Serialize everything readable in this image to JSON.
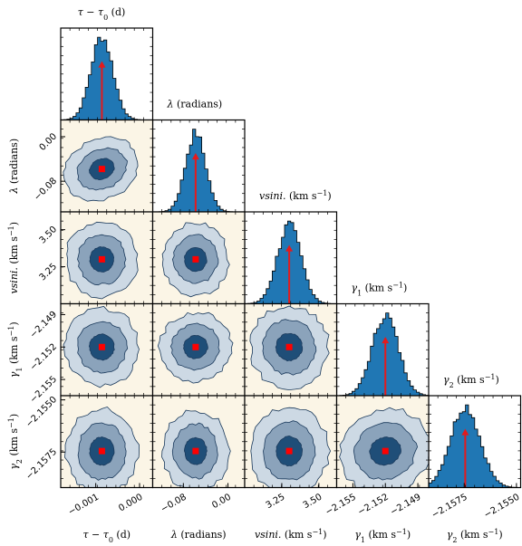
{
  "figure": {
    "type": "corner-plot",
    "params": [
      {
        "id": "tau",
        "title": "τ − τ0 (d)",
        "label_main": "τ − τ",
        "label_sub": "0",
        "label_unit": " (d)"
      },
      {
        "id": "lambda",
        "title": "λ (radians)",
        "label_main": "λ",
        "label_sub": "",
        "label_unit": " (radians)"
      },
      {
        "id": "vsini",
        "title": "vsini. (km s−1)",
        "label_main": "vsini.",
        "label_sub": "",
        "label_unit": " (km s",
        "label_sup": "−1",
        "label_close": ")"
      },
      {
        "id": "gamma1",
        "title": "γ1 (km s−1)",
        "label_main": "γ",
        "label_sub": "1",
        "label_unit": " (km s",
        "label_sup": "−1",
        "label_close": ")"
      },
      {
        "id": "gamma2",
        "title": "γ2 (km s−1)",
        "label_main": "γ",
        "label_sub": "2",
        "label_unit": " (km s",
        "label_sup": "−1",
        "label_close": ")"
      }
    ],
    "colors": {
      "histogram": "#2077b4",
      "median_arrow": "#e41a1c",
      "marker": "#ff0000",
      "panel_bg": "#fbf5e6",
      "contour_outer": "#cdd9e4",
      "contour_mid": "#8ba3bb",
      "contour_inner": "#1f4e78",
      "contour_line": "#1b3a5c"
    }
  },
  "chart_data": {
    "type": "corner",
    "dimensions": [
      "tau",
      "lambda",
      "vsini",
      "gamma1",
      "gamma2"
    ],
    "ranges": [
      [
        -0.0018,
        0.0003
      ],
      [
        -0.135,
        0.03
      ],
      [
        3.0,
        3.62
      ],
      [
        -2.1565,
        -2.148
      ],
      [
        -2.1592,
        -2.1548
      ]
    ],
    "median": [
      -0.00086,
      -0.058,
      3.3,
      -2.152,
      -2.15745
    ],
    "sigma": [
      0.00025,
      0.018,
      0.08,
      0.0012,
      0.0007
    ],
    "y_ticks": [
      [],
      [
        {
          "v": 0.0,
          "label": "0.00"
        },
        {
          "v": -0.08,
          "label": "−0.08"
        }
      ],
      [
        {
          "v": 3.5,
          "label": "3.50"
        },
        {
          "v": 3.25,
          "label": "3.25"
        }
      ],
      [
        {
          "v": -2.149,
          "label": "−2.149"
        },
        {
          "v": -2.152,
          "label": "−2.152"
        },
        {
          "v": -2.155,
          "label": "−2.155"
        }
      ],
      [
        {
          "v": -2.155,
          "label": "−2.1550"
        },
        {
          "v": -2.1575,
          "label": "−2.1575"
        }
      ]
    ],
    "x_ticks": [
      [
        {
          "v": -0.001,
          "label": "−0.001"
        },
        {
          "v": 0.0,
          "label": "0.000"
        }
      ],
      [
        {
          "v": -0.08,
          "label": "−0.08"
        },
        {
          "v": 0.0,
          "label": "0.00"
        }
      ],
      [
        {
          "v": 3.25,
          "label": "3.25"
        },
        {
          "v": 3.5,
          "label": "3.50"
        }
      ],
      [
        {
          "v": -2.155,
          "label": "−2.155"
        },
        {
          "v": -2.152,
          "label": "−2.152"
        },
        {
          "v": -2.149,
          "label": "−2.149"
        }
      ],
      [
        {
          "v": -2.1575,
          "label": "−2.1575"
        },
        {
          "v": -2.155,
          "label": "−2.1550"
        }
      ]
    ],
    "correlation": [
      [
        1.0,
        0.5,
        0.0,
        0.1,
        0.0
      ],
      [
        0.5,
        1.0,
        0.0,
        0.45,
        0.0
      ],
      [
        0.0,
        0.0,
        1.0,
        0.0,
        0.0
      ],
      [
        0.1,
        0.45,
        0.0,
        1.0,
        0.45
      ],
      [
        0.0,
        0.0,
        0.0,
        0.45,
        1.0
      ]
    ],
    "histogram_bins": 30,
    "contour_levels_sigma": [
      1,
      2,
      3
    ],
    "grid": false,
    "legend": "none"
  }
}
